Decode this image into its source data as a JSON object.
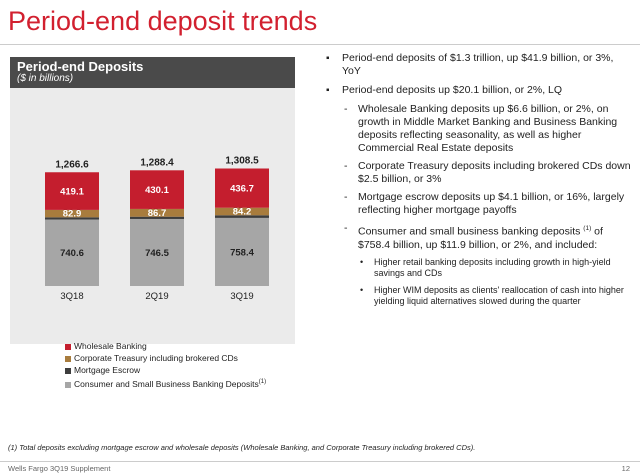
{
  "page": {
    "title": "Period-end deposit trends",
    "footnote": "(1)  Total deposits excluding mortgage escrow and wholesale deposits (Wholesale Banking, and Corporate Treasury including brokered CDs).",
    "footer": "Wells Fargo 3Q19 Supplement",
    "page_number": "12"
  },
  "colors": {
    "title_red": "#d2202f",
    "wholesale": "#c41e2e",
    "corporate_treasury": "#a87c3d",
    "mortgage_escrow": "#3d3d3d",
    "consumer": "#a6a6a6",
    "header_bg": "#4a4a4a",
    "panel_bg": "#ebebeb"
  },
  "chart_data": {
    "type": "bar",
    "stacked": true,
    "title": "Period-end Deposits",
    "subtitle": "($ in billions)",
    "categories": [
      "3Q18",
      "2Q19",
      "3Q19"
    ],
    "totals": [
      "1,266.6",
      "1,288.4",
      "1,308.5"
    ],
    "series": [
      {
        "name": "Consumer and Small Business Banking Deposits",
        "legend_sup": "(1)",
        "values": [
          740.6,
          746.5,
          758.4
        ],
        "color": "#a6a6a6"
      },
      {
        "name": "Mortgage Escrow",
        "values": [
          24.0,
          25.1,
          29.2
        ],
        "color": "#3d3d3d"
      },
      {
        "name": "Corporate Treasury including brokered CDs",
        "values": [
          82.9,
          86.7,
          84.2
        ],
        "color": "#a87c3d"
      },
      {
        "name": "Wholesale Banking",
        "values": [
          419.1,
          430.1,
          436.7
        ],
        "color": "#c41e2e"
      }
    ],
    "legend_order": [
      3,
      2,
      1,
      0
    ],
    "legend_position": "bottom",
    "grid": false
  },
  "bullets": [
    {
      "text": "Period-end deposits of $1.3 trillion, up $41.9 billion, or 3%, YoY"
    },
    {
      "text": "Period-end deposits up $20.1 billion, or 2%, LQ"
    }
  ],
  "sub_bullets": [
    {
      "text": "Wholesale Banking deposits up $6.6 billion, or 2%, on growth in Middle Market Banking and Business Banking deposits reflecting seasonality, as well as higher Commercial Real Estate deposits"
    },
    {
      "text": "Corporate Treasury deposits including brokered CDs down $2.5 billion, or 3%"
    },
    {
      "text": "Mortgage escrow deposits up $4.1 billion, or 16%, largely reflecting higher mortgage payoffs"
    },
    {
      "text_a": "Consumer and small business banking deposits",
      "sup": "(1)",
      "text_b": " of $758.4 billion, up $11.9 billion, or 2%, and included:"
    }
  ],
  "sub_sub_bullets": [
    {
      "text": "Higher retail banking deposits including growth in high-yield savings and CDs"
    },
    {
      "text": "Higher WIM deposits as clients' reallocation of cash into higher yielding liquid alternatives slowed during the quarter"
    }
  ]
}
